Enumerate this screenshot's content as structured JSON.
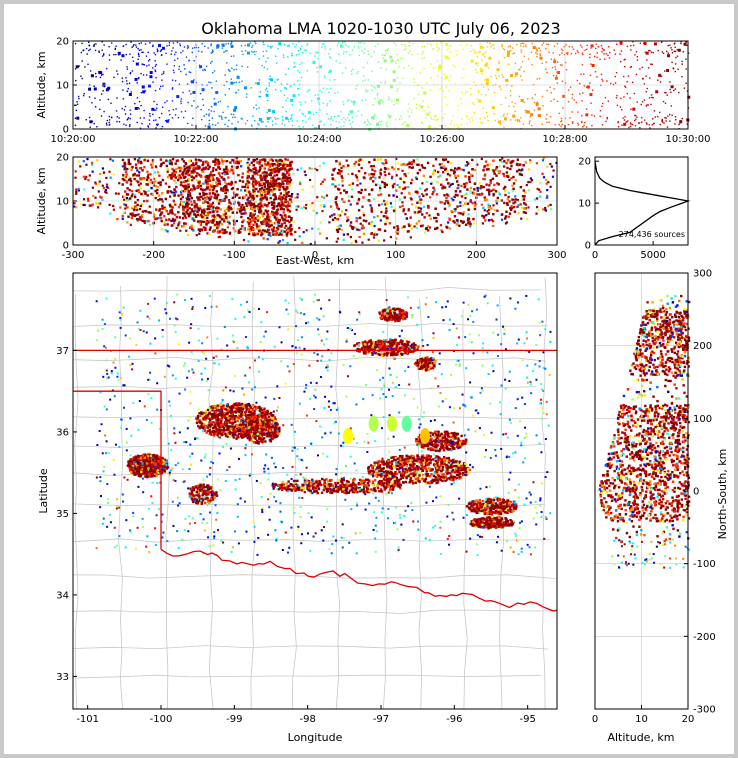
{
  "title": "Oklahoma LMA 1020-1030 UTC July 06, 2023",
  "colors": {
    "state_border": "#e00000",
    "county_border": "#c8c8c8",
    "grid": "#c8c8c8",
    "axis": "#000000",
    "dense": "#8b0000"
  },
  "colormap": "jet",
  "chart_data": [
    {
      "id": "time-altitude",
      "type": "scatter",
      "xlabel": "",
      "ylabel": "Altitude, km",
      "xticks": [
        "10:20:00",
        "10:22:00",
        "10:24:00",
        "10:26:00",
        "10:28:00",
        "10:30:00"
      ],
      "xlim": [
        "10:20:00",
        "10:30:00"
      ],
      "yticks": [
        0,
        10,
        20
      ],
      "ylim": [
        0,
        20
      ],
      "color_by": "time",
      "grid": true
    },
    {
      "id": "east-west-altitude",
      "type": "scatter",
      "xlabel": "East-West, km",
      "ylabel": "Altitude, km",
      "xticks": [
        -300,
        -200,
        -100,
        0,
        100,
        200,
        300
      ],
      "xlim": [
        -300,
        300
      ],
      "yticks": [
        0,
        10,
        20
      ],
      "ylim": [
        0,
        20
      ],
      "dense_regions_km": [
        [
          -240,
          -110
        ],
        [
          -165,
          -35
        ],
        [
          -85,
          -30
        ],
        [
          20,
          260
        ]
      ],
      "grid": true
    },
    {
      "id": "altitude-histogram",
      "type": "line",
      "xlabel": "",
      "ylabel": "",
      "xticks": [
        0,
        5000
      ],
      "xlim": [
        0,
        8000
      ],
      "yticks": [
        0,
        10,
        20
      ],
      "ylim": [
        0,
        21
      ],
      "annotation": "274,436 sources",
      "x": [
        0,
        300,
        1500,
        3000,
        3500,
        4000,
        5000,
        5600,
        6500,
        7500,
        8000,
        7000,
        5000,
        3000,
        1500,
        800,
        400,
        150,
        0
      ],
      "y": [
        0,
        1,
        2,
        3,
        4,
        5,
        7,
        8,
        9,
        10,
        10.5,
        11,
        12,
        13,
        14,
        15,
        16,
        17.5,
        20
      ]
    },
    {
      "id": "plan-view",
      "type": "scatter",
      "xlabel": "Longitude",
      "ylabel": "Latitude",
      "xticks": [
        -101,
        -100,
        -99,
        -98,
        -97,
        -96,
        -95
      ],
      "xlim": [
        -101.2,
        -94.6
      ],
      "yticks": [
        33,
        34,
        35,
        36,
        37
      ],
      "ylim": [
        32.6,
        37.95
      ],
      "grid": false
    },
    {
      "id": "altitude-north-south",
      "type": "scatter",
      "xlabel": "Altitude, km",
      "ylabel": "North-South, km",
      "xticks": [
        0,
        10,
        20
      ],
      "xlim": [
        0,
        20
      ],
      "yticks": [
        -300,
        -200,
        -100,
        0,
        100,
        200,
        300
      ],
      "ylim": [
        -300,
        300
      ],
      "grid": true
    }
  ]
}
